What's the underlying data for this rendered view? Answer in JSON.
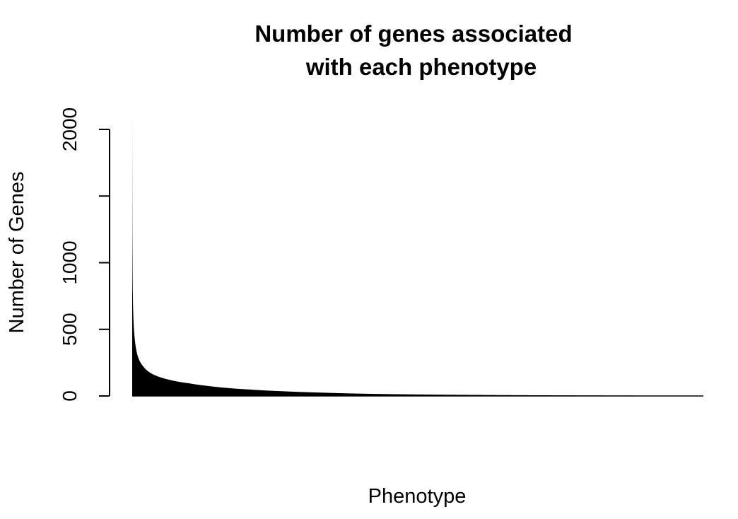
{
  "chart_data": {
    "type": "bar",
    "title_line1": "Number of genes associated",
    "title_line2": "with each phenotype",
    "xlabel": "Phenotype",
    "ylabel": "Number of Genes",
    "ylim": [
      0,
      2200
    ],
    "yticks": [
      0,
      500,
      1000,
      1500,
      2000
    ],
    "ytick_labels": [
      "0",
      "500",
      "1000",
      "",
      "2000"
    ],
    "bar_color": "#000000",
    "sorted": "descending",
    "phenotypes_approx": 3000,
    "values_profile": [
      {
        "rank": 1,
        "value": 2200
      },
      {
        "rank": 2,
        "value": 1250
      },
      {
        "rank": 4,
        "value": 800
      },
      {
        "rank": 8,
        "value": 560
      },
      {
        "rank": 15,
        "value": 420
      },
      {
        "rank": 30,
        "value": 300
      },
      {
        "rank": 60,
        "value": 220
      },
      {
        "rank": 100,
        "value": 170
      },
      {
        "rank": 150,
        "value": 140
      },
      {
        "rank": 200,
        "value": 120
      },
      {
        "rank": 300,
        "value": 95
      },
      {
        "rank": 400,
        "value": 75
      },
      {
        "rank": 600,
        "value": 50
      },
      {
        "rank": 800,
        "value": 35
      },
      {
        "rank": 1000,
        "value": 25
      },
      {
        "rank": 1300,
        "value": 15
      },
      {
        "rank": 1800,
        "value": 8
      },
      {
        "rank": 2400,
        "value": 4
      },
      {
        "rank": 3000,
        "value": 2
      }
    ],
    "grid": false,
    "legend": "none"
  }
}
